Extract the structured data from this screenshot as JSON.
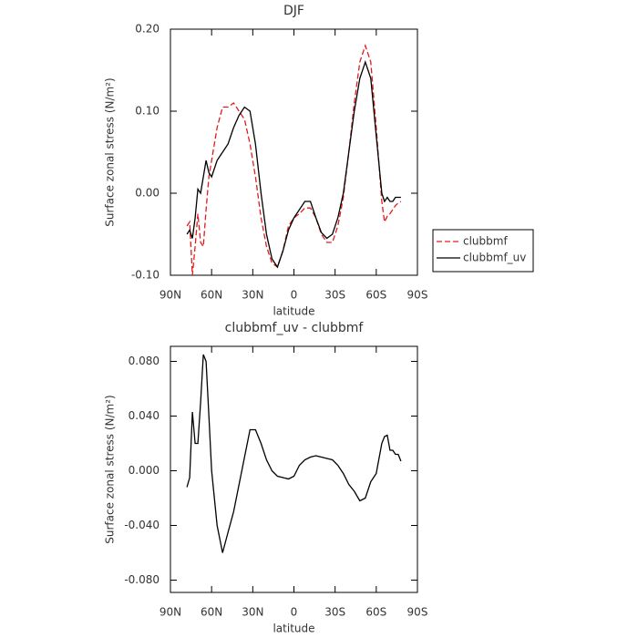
{
  "chart_data": [
    {
      "type": "line",
      "title": "DJF",
      "xlabel": "latitude",
      "ylabel": "Surface zonal stress (N/m²)",
      "x": [
        78,
        76,
        74,
        72,
        70,
        68,
        66,
        64,
        62,
        60,
        56,
        52,
        48,
        44,
        40,
        36,
        32,
        28,
        24,
        20,
        16,
        12,
        8,
        4,
        0,
        -4,
        -8,
        -12,
        -16,
        -20,
        -24,
        -28,
        -32,
        -36,
        -40,
        -44,
        -48,
        -52,
        -56,
        -60,
        -64,
        -66,
        -68,
        -70,
        -72,
        -74,
        -76,
        -78
      ],
      "xlim": [
        90,
        -90
      ],
      "xticks": [
        {
          "value": 90,
          "label": "90N"
        },
        {
          "value": 60,
          "label": "60N"
        },
        {
          "value": 30,
          "label": "30N"
        },
        0,
        {
          "value": -30,
          "label": "30S"
        },
        {
          "value": -60,
          "label": "60S"
        },
        {
          "value": -90,
          "label": "90S"
        }
      ],
      "ylim": [
        -0.1,
        0.2
      ],
      "yticks": [
        {
          "value": -0.1,
          "label": "-0.10"
        },
        {
          "value": 0,
          "label": "0.00"
        },
        {
          "value": 0.1,
          "label": "0.10"
        },
        {
          "value": 0.2,
          "label": "0.20"
        }
      ],
      "legend": "outside-right",
      "series": [
        {
          "name": "clubbmf",
          "color": "#e31a1c",
          "linestyle": "dashed",
          "values": [
            -0.04,
            -0.035,
            -0.1,
            -0.065,
            -0.025,
            -0.06,
            -0.065,
            -0.02,
            0.02,
            0.04,
            0.08,
            0.105,
            0.105,
            0.11,
            0.1,
            0.09,
            0.06,
            0.02,
            -0.03,
            -0.065,
            -0.085,
            -0.09,
            -0.07,
            -0.04,
            -0.03,
            -0.025,
            -0.018,
            -0.018,
            -0.03,
            -0.05,
            -0.06,
            -0.06,
            -0.04,
            -0.005,
            0.05,
            0.11,
            0.16,
            0.18,
            0.16,
            0.08,
            -0.01,
            -0.035,
            -0.028,
            -0.025,
            -0.02,
            -0.015,
            -0.012,
            -0.01
          ]
        },
        {
          "name": "clubbmf_uv",
          "color": "#000000",
          "linestyle": "solid",
          "values": [
            -0.05,
            -0.045,
            -0.055,
            -0.03,
            0.005,
            0.0,
            0.02,
            0.04,
            0.025,
            0.02,
            0.04,
            0.05,
            0.06,
            0.08,
            0.095,
            0.105,
            0.1,
            0.06,
            0.0,
            -0.05,
            -0.08,
            -0.09,
            -0.07,
            -0.045,
            -0.03,
            -0.02,
            -0.01,
            -0.01,
            -0.03,
            -0.048,
            -0.055,
            -0.05,
            -0.03,
            0.0,
            0.05,
            0.1,
            0.14,
            0.16,
            0.14,
            0.07,
            0.0,
            -0.01,
            -0.005,
            -0.01,
            -0.01,
            -0.005,
            -0.005,
            -0.005
          ]
        }
      ]
    },
    {
      "type": "line",
      "title": "clubbmf_uv - clubbmf",
      "xlabel": "latitude",
      "ylabel": "Surface zonal stress (N/m²)",
      "x": [
        78,
        76,
        74,
        72,
        70,
        68,
        66,
        64,
        62,
        60,
        56,
        52,
        48,
        44,
        40,
        36,
        32,
        28,
        24,
        20,
        16,
        12,
        8,
        4,
        0,
        -4,
        -8,
        -12,
        -16,
        -20,
        -24,
        -28,
        -32,
        -36,
        -40,
        -44,
        -48,
        -52,
        -56,
        -60,
        -64,
        -66,
        -68,
        -70,
        -72,
        -74,
        -76,
        -78
      ],
      "xlim": [
        90,
        -90
      ],
      "xticks": [
        {
          "value": 90,
          "label": "90N"
        },
        {
          "value": 60,
          "label": "60N"
        },
        {
          "value": 30,
          "label": "30N"
        },
        0,
        {
          "value": -30,
          "label": "30S"
        },
        {
          "value": -60,
          "label": "60S"
        },
        {
          "value": -90,
          "label": "90S"
        }
      ],
      "ylim": [
        -0.089,
        0.091
      ],
      "yticks": [
        {
          "value": -0.08,
          "label": "-0.080"
        },
        {
          "value": -0.04,
          "label": "-0.040"
        },
        {
          "value": 0,
          "label": "0.000"
        },
        {
          "value": 0.04,
          "label": "0.040"
        },
        {
          "value": 0.08,
          "label": "0.080"
        }
      ],
      "series": [
        {
          "color": "#000000",
          "linestyle": "solid",
          "values": [
            -0.012,
            -0.005,
            0.043,
            0.02,
            0.02,
            0.05,
            0.085,
            0.08,
            0.04,
            0.0,
            -0.04,
            -0.06,
            -0.045,
            -0.03,
            -0.01,
            0.01,
            0.03,
            0.03,
            0.02,
            0.008,
            0.0,
            -0.004,
            -0.005,
            -0.006,
            -0.004,
            0.004,
            0.008,
            0.01,
            0.011,
            0.01,
            0.009,
            0.008,
            0.004,
            -0.002,
            -0.01,
            -0.015,
            -0.022,
            -0.02,
            -0.008,
            -0.002,
            0.02,
            0.025,
            0.026,
            0.015,
            0.015,
            0.012,
            0.012,
            0.007
          ]
        }
      ]
    }
  ]
}
